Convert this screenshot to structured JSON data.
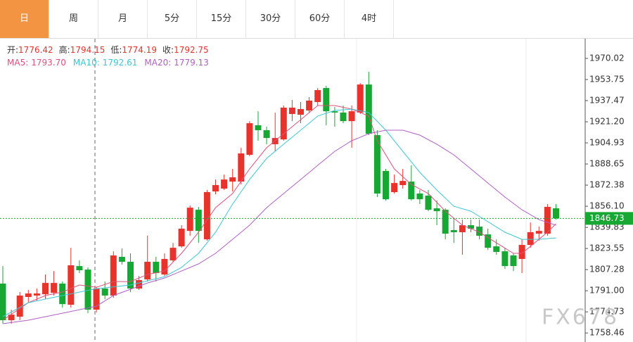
{
  "tabs": [
    "日",
    "周",
    "月",
    "5分",
    "15分",
    "30分",
    "60分",
    "4时"
  ],
  "active_tab": 0,
  "chart_data": {
    "type": "candlestick",
    "info": [
      {
        "label": "开:",
        "value": 1776.42
      },
      {
        "label": "高:",
        "value": 1794.15
      },
      {
        "label": "低:",
        "value": 1774.19
      },
      {
        "label": "收:",
        "value": 1792.75
      }
    ],
    "up_color": "#e8332c",
    "down_color": "#16a833",
    "open": [
      1796.5,
      1768.3,
      1771.0,
      1786.2,
      1787.3,
      1788.3,
      1789.4,
      1796.5,
      1780.2,
      1810.0,
      1807.3,
      1776.42,
      1792.7,
      1787.3,
      1817.1,
      1813.3,
      1792.7,
      1799.7,
      1813.3,
      1803.5,
      1814.4,
      1825.2,
      1837.1,
      1853.4,
      1830.6,
      1867.5,
      1869.7,
      1875.1,
      1875.1,
      1895.7,
      1918.5,
      1914.7,
      1903.9,
      1907.6,
      1927.2,
      1926.6,
      1929.9,
      1936.4,
      1947.2,
      1929.3,
      1928.3,
      1921.7,
      1928.3,
      1949.9,
      1910.9,
      1883.3,
      1867.0,
      1872.4,
      1875.1,
      1865.9,
      1864.3,
      1854.5,
      1853.4,
      1837.7,
      1836.1,
      1841.5,
      1840.4,
      1834.4,
      1825.2,
      1821.4,
      1818.2,
      1815.5,
      1826.3,
      1835.0,
      1835.0,
      1854.5
    ],
    "high": [
      1810.0,
      1776.4,
      1790.0,
      1791.6,
      1792.7,
      1803.5,
      1806.2,
      1798.1,
      1824.1,
      1814.4,
      1809.0,
      1794.15,
      1798.1,
      1821.4,
      1823.6,
      1819.8,
      1802.5,
      1833.4,
      1817.1,
      1819.8,
      1827.9,
      1841.5,
      1856.7,
      1855.6,
      1868.6,
      1876.7,
      1880.5,
      1884.9,
      1901.2,
      1921.7,
      1929.3,
      1917.4,
      1928.3,
      1933.7,
      1938.0,
      1936.4,
      1940.2,
      1947.2,
      1948.9,
      1932.6,
      1933.7,
      1933.7,
      1951.0,
      1959.7,
      1914.7,
      1884.9,
      1880.5,
      1884.9,
      1887.6,
      1868.6,
      1868.6,
      1860.5,
      1854.5,
      1846.9,
      1845.8,
      1845.8,
      1845.8,
      1838.8,
      1830.6,
      1824.1,
      1819.8,
      1830.6,
      1843.6,
      1840.4,
      1857.8,
      1857.8
    ],
    "low": [
      1765.6,
      1765.6,
      1768.3,
      1781.8,
      1782.9,
      1784.5,
      1787.3,
      1778.0,
      1778.0,
      1804.6,
      1773.7,
      1774.19,
      1784.5,
      1785.6,
      1811.1,
      1790.0,
      1791.6,
      1798.1,
      1798.1,
      1802.5,
      1813.3,
      1824.1,
      1833.4,
      1827.9,
      1829.6,
      1865.4,
      1868.6,
      1867.5,
      1872.9,
      1894.6,
      1906.6,
      1903.9,
      1898.4,
      1906.6,
      1921.7,
      1920.1,
      1928.3,
      1933.7,
      1918.5,
      1917.4,
      1920.1,
      1901.2,
      1927.2,
      1910.9,
      1863.2,
      1860.5,
      1865.9,
      1869.7,
      1860.5,
      1857.8,
      1852.3,
      1841.5,
      1830.6,
      1827.9,
      1818.7,
      1836.1,
      1830.6,
      1822.5,
      1818.7,
      1807.9,
      1806.2,
      1804.6,
      1824.1,
      1829.6,
      1833.4,
      1845.8
    ],
    "close": [
      1768.3,
      1772.6,
      1787.3,
      1788.9,
      1788.9,
      1797.0,
      1797.0,
      1780.7,
      1810.6,
      1806.8,
      1776.4,
      1792.75,
      1787.3,
      1818.2,
      1813.3,
      1792.7,
      1799.2,
      1813.3,
      1804.6,
      1815.5,
      1824.1,
      1838.8,
      1855.0,
      1837.1,
      1867.0,
      1872.4,
      1876.7,
      1878.4,
      1896.8,
      1920.1,
      1914.7,
      1908.7,
      1908.7,
      1932.1,
      1932.1,
      1931.0,
      1937.5,
      1945.6,
      1929.3,
      1928.3,
      1921.7,
      1929.3,
      1949.9,
      1912.0,
      1865.9,
      1861.5,
      1874.0,
      1875.6,
      1861.5,
      1861.5,
      1853.4,
      1852.3,
      1835.0,
      1836.1,
      1841.5,
      1838.8,
      1833.4,
      1824.1,
      1820.9,
      1810.0,
      1810.0,
      1826.3,
      1836.1,
      1837.1,
      1855.6,
      1846.73
    ],
    "series": [
      {
        "name": "MA5:",
        "value_label": "1793.70",
        "color": "#e0507a",
        "x": [
          0,
          3,
          5,
          7,
          9,
          11,
          13,
          15,
          17,
          19,
          21,
          23,
          25,
          27,
          29,
          31,
          33,
          35,
          37,
          39,
          41,
          43,
          44,
          46,
          48,
          50,
          52,
          54,
          56,
          58,
          60,
          61,
          62,
          64,
          65
        ],
        "values": [
          1768.3,
          1781.8,
          1787.3,
          1790.0,
          1795.4,
          1793.7,
          1798.1,
          1798.1,
          1803.5,
          1806.2,
          1819.8,
          1836.1,
          1855.0,
          1865.9,
          1884.9,
          1901.2,
          1912.0,
          1922.8,
          1933.7,
          1933.7,
          1931.0,
          1925.6,
          1906.6,
          1884.9,
          1872.9,
          1865.9,
          1852.3,
          1841.5,
          1836.1,
          1827.9,
          1819.8,
          1819.8,
          1825.2,
          1836.1,
          1842.6
        ]
      },
      {
        "name": "MA10:",
        "value_label": "1792.61",
        "color": "#3ec6d6",
        "x": [
          0,
          3,
          7,
          11,
          15,
          19,
          21,
          23,
          25,
          27,
          29,
          31,
          33,
          35,
          37,
          39,
          41,
          43,
          45,
          47,
          49,
          51,
          53,
          55,
          57,
          59,
          61,
          63,
          65
        ],
        "values": [
          1771.0,
          1781.8,
          1787.3,
          1792.6,
          1795.4,
          1801.9,
          1809.0,
          1819.8,
          1836.1,
          1857.8,
          1876.7,
          1893.0,
          1903.9,
          1914.7,
          1925.6,
          1929.9,
          1931.0,
          1928.3,
          1914.7,
          1898.4,
          1882.2,
          1868.6,
          1856.1,
          1852.3,
          1844.2,
          1836.1,
          1830.6,
          1830.6,
          1831.7
        ]
      },
      {
        "name": "MA20:",
        "value_label": "1779.13",
        "color": "#b060c6",
        "x": [
          0,
          3,
          7,
          11,
          13,
          17,
          19,
          21,
          23,
          25,
          27,
          29,
          31,
          33,
          35,
          37,
          39,
          41,
          43,
          45,
          47,
          49,
          51,
          53,
          55,
          57,
          59,
          61,
          63,
          65
        ],
        "values": [
          1765.6,
          1768.3,
          1773.7,
          1779.1,
          1787.3,
          1797.0,
          1800.8,
          1806.2,
          1811.7,
          1819.8,
          1830.6,
          1841.5,
          1855.0,
          1865.9,
          1876.7,
          1887.6,
          1898.4,
          1906.6,
          1912.0,
          1914.7,
          1914.7,
          1910.9,
          1903.9,
          1895.7,
          1884.9,
          1874.0,
          1863.2,
          1853.4,
          1845.8,
          1841.5
        ]
      }
    ],
    "current_price": 1846.73,
    "current_color": "#16a833",
    "ylim": [
      1751.5,
      1985.2
    ],
    "yticks": [
      1970.02,
      1953.75,
      1937.47,
      {
        "value": 1921.2,
        "label": "1921.20"
      },
      1904.93,
      1888.65,
      1872.38,
      {
        "value": 1856.1,
        "label": "1856.10"
      },
      1839.83,
      1823.55,
      1807.28,
      {
        "value": 1791,
        "label": "1791.00"
      },
      1774.73,
      1758.46
    ],
    "watermark": "FX678"
  }
}
